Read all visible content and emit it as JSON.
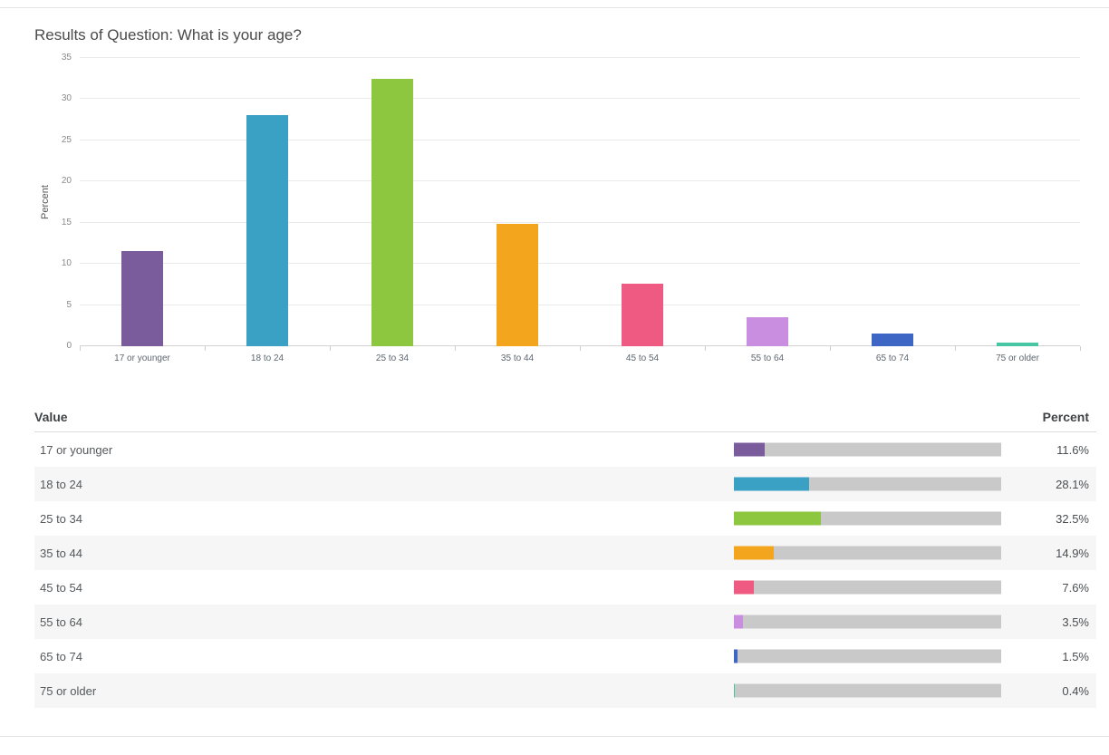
{
  "title": "Results of Question: What is your age?",
  "chart_data": {
    "type": "bar",
    "title": "Results of Question: What is your age?",
    "xlabel": "",
    "ylabel": "Percent",
    "ylim": [
      0,
      35
    ],
    "yticks": [
      0,
      5,
      10,
      15,
      20,
      25,
      30,
      35
    ],
    "grid": true,
    "legend": false,
    "categories": [
      "17 or younger",
      "18 to 24",
      "25 to 34",
      "35 to 44",
      "45 to 54",
      "55 to 64",
      "65 to 74",
      "75 or older"
    ],
    "values": [
      11.6,
      28.1,
      32.5,
      14.9,
      7.6,
      3.5,
      1.5,
      0.4
    ],
    "colors": [
      "#7A5C9D",
      "#3AA0C4",
      "#8DC63F",
      "#F3A51E",
      "#EF5A82",
      "#CA8EE0",
      "#3E66C4",
      "#48C5A2"
    ]
  },
  "table": {
    "headers": {
      "value": "Value",
      "percent": "Percent"
    },
    "track_color": "#c9c9c9",
    "rows": [
      {
        "value": "17 or younger",
        "percent": 11.6,
        "percent_label": "11.6%",
        "color": "#7A5C9D"
      },
      {
        "value": "18 to 24",
        "percent": 28.1,
        "percent_label": "28.1%",
        "color": "#3AA0C4"
      },
      {
        "value": "25 to 34",
        "percent": 32.5,
        "percent_label": "32.5%",
        "color": "#8DC63F"
      },
      {
        "value": "35 to 44",
        "percent": 14.9,
        "percent_label": "14.9%",
        "color": "#F3A51E"
      },
      {
        "value": "45 to 54",
        "percent": 7.6,
        "percent_label": "7.6%",
        "color": "#EF5A82"
      },
      {
        "value": "55 to 64",
        "percent": 3.5,
        "percent_label": "3.5%",
        "color": "#CA8EE0"
      },
      {
        "value": "65 to 74",
        "percent": 1.5,
        "percent_label": "1.5%",
        "color": "#3E66C4"
      },
      {
        "value": "75 or older",
        "percent": 0.4,
        "percent_label": "0.4%",
        "color": "#48C5A2"
      }
    ]
  }
}
